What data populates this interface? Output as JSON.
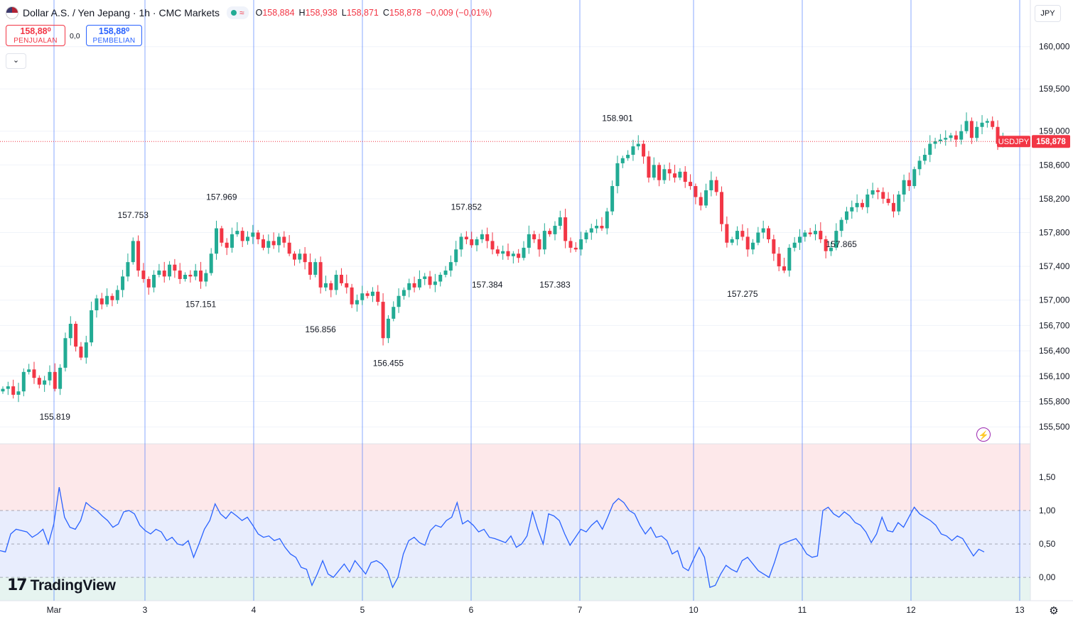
{
  "header": {
    "title": "Dollar A.S. / Yen Jepang · 1h · CMC Markets",
    "o_label": "O",
    "o": "158,884",
    "h_label": "H",
    "h": "158,938",
    "l_label": "L",
    "l": "158,871",
    "c_label": "C",
    "c": "158,878",
    "change": "−0,009 (−0,01%)",
    "wave_icon": "≈"
  },
  "trade": {
    "sell_price": "158,88⁰",
    "sell_label": "PENJUALAN",
    "spread": "0,0",
    "buy_price": "158,88⁰",
    "buy_label": "PEMBELIAN",
    "collapse_icon": "⌄"
  },
  "currency": "JPY",
  "branding": {
    "logo_mark": "17",
    "name": "TradingView"
  },
  "icons": {
    "lightning": "⚡",
    "settings": "⚙"
  },
  "colors": {
    "up": "#22ab94",
    "down": "#f23645",
    "separator": "#2962ff",
    "oscillator": "#2962ff",
    "price_label": "#f23645"
  },
  "chart_data": [
    {
      "type": "candlestick",
      "symbol": "USDJPY",
      "last_price": "158,878",
      "last_value": 158.878,
      "ylim": [
        155.3,
        160.3
      ],
      "y_ticks": [
        {
          "v": 160.0,
          "t": "160,000"
        },
        {
          "v": 159.5,
          "t": "159,500"
        },
        {
          "v": 159.0,
          "t": "159,000"
        },
        {
          "v": 158.6,
          "t": "158,600"
        },
        {
          "v": 158.2,
          "t": "158,200"
        },
        {
          "v": 157.8,
          "t": "157,800"
        },
        {
          "v": 157.4,
          "t": "157,400"
        },
        {
          "v": 157.0,
          "t": "157,000"
        },
        {
          "v": 156.7,
          "t": "156,700"
        },
        {
          "v": 156.4,
          "t": "156,400"
        },
        {
          "v": 156.1,
          "t": "156,100"
        },
        {
          "v": 155.8,
          "t": "155,800"
        },
        {
          "v": 155.5,
          "t": "155,500"
        }
      ],
      "x_ticks": [
        "Mar",
        "3",
        "4",
        "5",
        "6",
        "7",
        "10",
        "11",
        "12",
        "13"
      ],
      "annotations": [
        {
          "label": "155.819",
          "i": 10,
          "side": "low"
        },
        {
          "label": "157.753",
          "i": 25,
          "side": "high"
        },
        {
          "label": "157.151",
          "i": 38,
          "side": "low"
        },
        {
          "label": "157.969",
          "i": 42,
          "side": "high"
        },
        {
          "label": "156.856",
          "i": 61,
          "side": "low"
        },
        {
          "label": "156.455",
          "i": 74,
          "side": "low"
        },
        {
          "label": "157.852",
          "i": 89,
          "side": "high"
        },
        {
          "label": "157.384",
          "i": 93,
          "side": "low"
        },
        {
          "label": "157.383",
          "i": 106,
          "side": "low"
        },
        {
          "label": "158.901",
          "i": 118,
          "side": "high"
        },
        {
          "label": "157.275",
          "i": 142,
          "side": "low"
        },
        {
          "label": "157.865",
          "i": 161,
          "side": "low"
        }
      ],
      "closes": [
        155.95,
        155.98,
        155.88,
        155.92,
        156.15,
        156.18,
        156.08,
        156.0,
        156.05,
        156.15,
        155.95,
        156.2,
        156.55,
        156.72,
        156.45,
        156.32,
        156.5,
        156.88,
        157.02,
        156.95,
        157.05,
        157.0,
        157.12,
        157.28,
        157.45,
        157.7,
        157.35,
        157.25,
        157.15,
        157.3,
        157.35,
        157.28,
        157.42,
        157.35,
        157.25,
        157.3,
        157.28,
        157.35,
        157.22,
        157.32,
        157.55,
        157.85,
        157.68,
        157.62,
        157.78,
        157.82,
        157.7,
        157.75,
        157.8,
        157.72,
        157.62,
        157.7,
        157.65,
        157.75,
        157.68,
        157.55,
        157.48,
        157.55,
        157.45,
        157.3,
        157.45,
        157.15,
        157.2,
        157.12,
        157.3,
        157.2,
        157.15,
        156.95,
        157.0,
        157.08,
        157.05,
        157.1,
        156.98,
        156.55,
        156.78,
        156.92,
        157.05,
        157.12,
        157.2,
        157.15,
        157.25,
        157.28,
        157.18,
        157.22,
        157.3,
        157.35,
        157.45,
        157.6,
        157.75,
        157.72,
        157.65,
        157.72,
        157.78,
        157.7,
        157.6,
        157.55,
        157.58,
        157.52,
        157.55,
        157.5,
        157.62,
        157.78,
        157.72,
        157.6,
        157.82,
        157.78,
        157.88,
        157.98,
        157.7,
        157.62,
        157.6,
        157.72,
        157.8,
        157.85,
        157.88,
        157.85,
        158.05,
        158.35,
        158.62,
        158.68,
        158.72,
        158.82,
        158.85,
        158.7,
        158.45,
        158.6,
        158.42,
        158.55,
        158.5,
        158.45,
        158.52,
        158.4,
        158.35,
        158.22,
        158.12,
        158.3,
        158.42,
        158.28,
        157.9,
        157.68,
        157.72,
        157.82,
        157.75,
        157.6,
        157.68,
        157.8,
        157.85,
        157.72,
        157.55,
        157.4,
        157.35,
        157.62,
        157.68,
        157.75,
        157.8,
        157.78,
        157.82,
        157.72,
        157.58,
        157.62,
        157.82,
        157.95,
        158.05,
        158.1,
        158.15,
        158.1,
        158.25,
        158.3,
        158.28,
        158.2,
        158.15,
        158.05,
        158.25,
        158.42,
        158.35,
        158.55,
        158.65,
        158.72,
        158.85,
        158.88,
        158.9,
        158.92,
        158.95,
        158.9,
        159.0,
        159.12,
        158.92,
        159.05,
        159.1,
        159.12,
        159.05,
        158.85,
        158.88
      ],
      "oscillator": {
        "ylim": [
          -0.35,
          2.0
        ],
        "y_ticks": [
          {
            "v": 1.5,
            "t": "1,50"
          },
          {
            "v": 1.0,
            "t": "1,00"
          },
          {
            "v": 0.5,
            "t": "0,50"
          },
          {
            "v": 0.0,
            "t": "0,00"
          }
        ],
        "zones": [
          {
            "from": 1.0,
            "to": 2.0,
            "color": "#fde8ea"
          },
          {
            "from": 0.0,
            "to": 1.0,
            "color": "#e8edfd"
          },
          {
            "from": -0.35,
            "to": 0.0,
            "color": "#e6f4f0"
          }
        ],
        "levels": [
          1.0,
          0.5,
          0.0
        ],
        "values": [
          0.4,
          0.38,
          0.65,
          0.72,
          0.7,
          0.68,
          0.6,
          0.65,
          0.72,
          0.5,
          0.8,
          1.35,
          0.9,
          0.75,
          0.72,
          0.85,
          1.12,
          1.05,
          1.0,
          0.92,
          0.85,
          0.75,
          0.8,
          0.98,
          1.0,
          0.95,
          0.78,
          0.7,
          0.65,
          0.72,
          0.68,
          0.55,
          0.6,
          0.5,
          0.48,
          0.55,
          0.3,
          0.5,
          0.72,
          0.85,
          1.1,
          0.95,
          0.88,
          0.98,
          0.92,
          0.85,
          0.9,
          0.78,
          0.65,
          0.6,
          0.62,
          0.55,
          0.58,
          0.45,
          0.35,
          0.3,
          0.15,
          0.12,
          -0.12,
          0.05,
          0.25,
          0.05,
          0.0,
          0.1,
          0.2,
          0.08,
          0.25,
          0.15,
          0.05,
          0.22,
          0.25,
          0.2,
          0.1,
          -0.15,
          0.0,
          0.35,
          0.55,
          0.6,
          0.52,
          0.48,
          0.7,
          0.78,
          0.75,
          0.85,
          0.9,
          1.12,
          0.8,
          0.85,
          0.78,
          0.68,
          0.72,
          0.6,
          0.58,
          0.55,
          0.52,
          0.62,
          0.45,
          0.5,
          0.62,
          0.98,
          0.72,
          0.5,
          0.95,
          0.92,
          0.85,
          0.65,
          0.48,
          0.6,
          0.72,
          0.68,
          0.78,
          0.85,
          0.72,
          0.9,
          1.1,
          1.18,
          1.12,
          1.0,
          0.95,
          0.78,
          0.65,
          0.75,
          0.6,
          0.62,
          0.55,
          0.35,
          0.4,
          0.15,
          0.1,
          0.28,
          0.45,
          0.3,
          -0.15,
          -0.12,
          0.05,
          0.18,
          0.12,
          0.08,
          0.25,
          0.3,
          0.2,
          0.1,
          0.05,
          0.0,
          0.22,
          0.48,
          0.52,
          0.55,
          0.58,
          0.48,
          0.35,
          0.3,
          0.32,
          1.0,
          1.05,
          0.95,
          0.9,
          0.98,
          0.92,
          0.82,
          0.78,
          0.68,
          0.52,
          0.65,
          0.9,
          0.7,
          0.68,
          0.82,
          0.75,
          0.9,
          1.05,
          0.95,
          0.9,
          0.85,
          0.78,
          0.65,
          0.62,
          0.55,
          0.62,
          0.58,
          0.45,
          0.32,
          0.42,
          0.38
        ]
      }
    }
  ]
}
